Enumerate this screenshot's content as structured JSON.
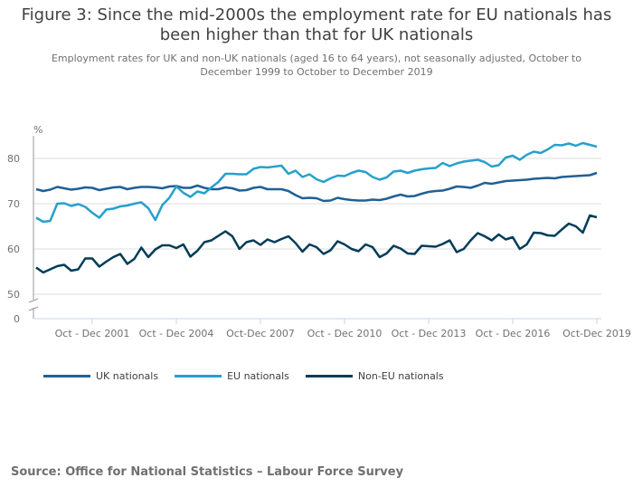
{
  "header": {
    "title": "Figure 3: Since the mid-2000s the employment rate for EU nationals has been higher than that for UK nationals",
    "subtitle": "Employment rates for UK and non-UK nationals (aged 16 to 64 years), not seasonally adjusted, October to December 1999 to October to December 2019"
  },
  "source": "Source: Office for National Statistics – Labour Force Survey",
  "chart_data": {
    "type": "line",
    "title": "Figure 3: Since the mid-2000s the employment rate for EU nationals has been higher than that for UK nationals",
    "ylabel": "%",
    "ylim": [
      0,
      85
    ],
    "y_axis_break": [
      0,
      50
    ],
    "yticks": [
      0,
      50,
      60,
      70,
      80
    ],
    "grid": true,
    "legend_position": "bottom",
    "xtick_labels": [
      "Oct - Dec 2001",
      "Oct - Dec 2004",
      "Oct-Dec 2007",
      "Oct - Dec 2010",
      "Oct - Dec 2013",
      "Oct - Dec 2016",
      "Oct-Dec 2019"
    ],
    "xtick_index": [
      8,
      20,
      32,
      44,
      56,
      68,
      80
    ],
    "x": [
      "Oct-Dec 1999",
      "Jan-Mar 2000",
      "Apr-Jun 2000",
      "Jul-Sep 2000",
      "Oct-Dec 2000",
      "Jan-Mar 2001",
      "Apr-Jun 2001",
      "Jul-Sep 2001",
      "Oct-Dec 2001",
      "Jan-Mar 2002",
      "Apr-Jun 2002",
      "Jul-Sep 2002",
      "Oct-Dec 2002",
      "Jan-Mar 2003",
      "Apr-Jun 2003",
      "Jul-Sep 2003",
      "Oct-Dec 2003",
      "Jan-Mar 2004",
      "Apr-Jun 2004",
      "Jul-Sep 2004",
      "Oct-Dec 2004",
      "Jan-Mar 2005",
      "Apr-Jun 2005",
      "Jul-Sep 2005",
      "Oct-Dec 2005",
      "Jan-Mar 2006",
      "Apr-Jun 2006",
      "Jul-Sep 2006",
      "Oct-Dec 2006",
      "Jan-Mar 2007",
      "Apr-Jun 2007",
      "Jul-Sep 2007",
      "Oct-Dec 2007",
      "Jan-Mar 2008",
      "Apr-Jun 2008",
      "Jul-Sep 2008",
      "Oct-Dec 2008",
      "Jan-Mar 2009",
      "Apr-Jun 2009",
      "Jul-Sep 2009",
      "Oct-Dec 2009",
      "Jan-Mar 2010",
      "Apr-Jun 2010",
      "Jul-Sep 2010",
      "Oct-Dec 2010",
      "Jan-Mar 2011",
      "Apr-Jun 2011",
      "Jul-Sep 2011",
      "Oct-Dec 2011",
      "Jan-Mar 2012",
      "Apr-Jun 2012",
      "Jul-Sep 2012",
      "Oct-Dec 2012",
      "Jan-Mar 2013",
      "Apr-Jun 2013",
      "Jul-Sep 2013",
      "Oct-Dec 2013",
      "Jan-Mar 2014",
      "Apr-Jun 2014",
      "Jul-Sep 2014",
      "Oct-Dec 2014",
      "Jan-Mar 2015",
      "Apr-Jun 2015",
      "Jul-Sep 2015",
      "Oct-Dec 2015",
      "Jan-Mar 2016",
      "Apr-Jun 2016",
      "Jul-Sep 2016",
      "Oct-Dec 2016",
      "Jan-Mar 2017",
      "Apr-Jun 2017",
      "Jul-Sep 2017",
      "Oct-Dec 2017",
      "Jan-Mar 2018",
      "Apr-Jun 2018",
      "Jul-Sep 2018",
      "Oct-Dec 2018",
      "Jan-Mar 2019",
      "Apr-Jun 2019",
      "Jul-Sep 2019",
      "Oct-Dec 2019"
    ],
    "series": [
      {
        "name": "UK nationals",
        "color": "#206095",
        "values": [
          73.2,
          72.8,
          73.1,
          73.7,
          73.4,
          73.1,
          73.3,
          73.6,
          73.5,
          73.0,
          73.3,
          73.6,
          73.7,
          73.2,
          73.5,
          73.7,
          73.7,
          73.6,
          73.4,
          73.8,
          73.9,
          73.5,
          73.5,
          74.0,
          73.5,
          73.2,
          73.2,
          73.6,
          73.4,
          72.9,
          73.0,
          73.5,
          73.7,
          73.2,
          73.2,
          73.2,
          72.8,
          71.9,
          71.2,
          71.3,
          71.2,
          70.6,
          70.7,
          71.3,
          71.0,
          70.8,
          70.7,
          70.7,
          70.9,
          70.8,
          71.1,
          71.6,
          72.0,
          71.6,
          71.7,
          72.2,
          72.6,
          72.8,
          72.9,
          73.3,
          73.8,
          73.7,
          73.5,
          74.0,
          74.6,
          74.4,
          74.7,
          75.0,
          75.1,
          75.2,
          75.3,
          75.5,
          75.6,
          75.7,
          75.6,
          75.9,
          76.0,
          76.1,
          76.2,
          76.3,
          76.8
        ]
      },
      {
        "name": "EU nationals",
        "color": "#27a0cc",
        "values": [
          66.9,
          66.0,
          66.2,
          70.0,
          70.1,
          69.5,
          69.9,
          69.3,
          68.0,
          66.9,
          68.7,
          68.9,
          69.4,
          69.6,
          70.0,
          70.3,
          69.0,
          66.4,
          69.7,
          71.3,
          73.8,
          72.4,
          71.5,
          72.7,
          72.3,
          73.6,
          74.8,
          76.6,
          76.6,
          76.5,
          76.5,
          77.7,
          78.1,
          78.0,
          78.2,
          78.4,
          76.6,
          77.3,
          75.9,
          76.5,
          75.4,
          74.8,
          75.6,
          76.2,
          76.1,
          76.8,
          77.3,
          77.0,
          75.9,
          75.3,
          75.8,
          77.1,
          77.3,
          76.8,
          77.3,
          77.6,
          77.8,
          77.9,
          79.0,
          78.3,
          78.9,
          79.3,
          79.5,
          79.7,
          79.2,
          78.2,
          78.5,
          80.2,
          80.6,
          79.7,
          80.8,
          81.5,
          81.2,
          82.0,
          83.0,
          82.9,
          83.3,
          82.8,
          83.4,
          83.0,
          82.6
        ]
      },
      {
        "name": "Non-EU nationals",
        "color": "#003c57",
        "values": [
          55.9,
          54.8,
          55.5,
          56.2,
          56.5,
          55.2,
          55.5,
          57.9,
          57.9,
          56.1,
          57.2,
          58.2,
          58.9,
          56.7,
          57.8,
          60.3,
          58.2,
          59.9,
          60.8,
          60.8,
          60.2,
          61.0,
          58.3,
          59.6,
          61.5,
          61.9,
          62.9,
          63.9,
          62.8,
          60.0,
          61.5,
          61.9,
          60.9,
          62.1,
          61.5,
          62.2,
          62.8,
          61.3,
          59.4,
          61.0,
          60.4,
          58.9,
          59.7,
          61.7,
          61.0,
          60.0,
          59.5,
          61.0,
          60.4,
          58.2,
          59.0,
          60.7,
          60.1,
          59.0,
          58.9,
          60.7,
          60.6,
          60.5,
          61.1,
          61.9,
          59.3,
          60.0,
          61.9,
          63.5,
          62.8,
          61.9,
          63.2,
          62.1,
          62.6,
          60.0,
          61.0,
          63.6,
          63.5,
          63.0,
          62.9,
          64.3,
          65.6,
          65.0,
          63.6,
          67.4,
          67.0
        ]
      }
    ]
  }
}
